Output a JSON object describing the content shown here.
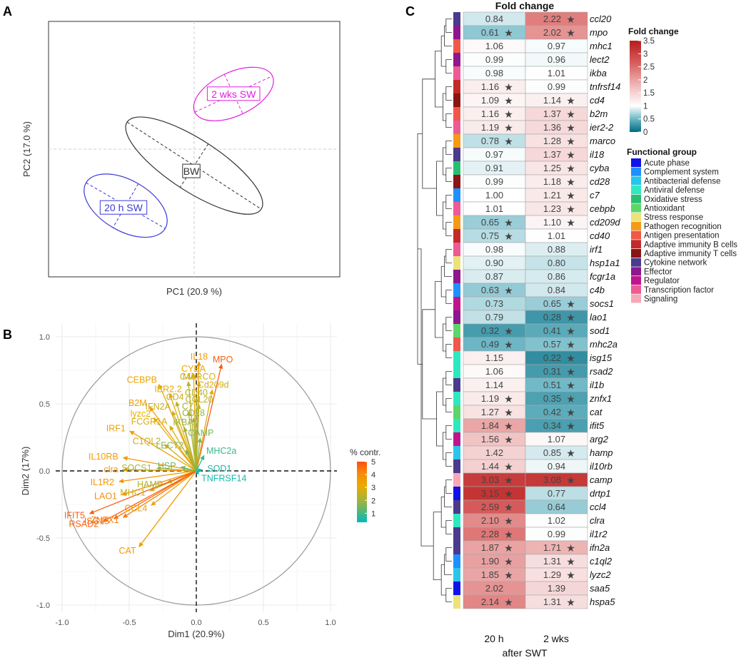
{
  "chart_data": [
    {
      "panel": "A",
      "type": "scatter",
      "title": "",
      "xlabel": "PC1 (20.9 %)",
      "ylabel": "PC2 (17.0 %)",
      "groups": [
        {
          "name": "2 wks SW",
          "color": "#e020e0",
          "center": [
            0.345,
            0.468
          ],
          "rx": 0.375,
          "ry": 0.185,
          "angle_deg": -25
        },
        {
          "name": "BW",
          "color": "#333333",
          "center": [
            0.0,
            -0.14
          ],
          "rx": 0.7,
          "ry": 0.22,
          "angle_deg": 33
        },
        {
          "name": "20 h SW",
          "color": "#3a3ad8",
          "center": [
            -0.6,
            -0.48
          ],
          "rx": 0.4,
          "ry": 0.215,
          "angle_deg": 30
        }
      ]
    },
    {
      "panel": "B",
      "type": "scatter",
      "subtype": "pca-variables-correlation-circle",
      "xlabel": "Dim1 (20.9%)",
      "ylabel": "Dim2 (17%)",
      "xlim": [
        -1.0,
        1.0
      ],
      "ylim": [
        -1.0,
        1.0
      ],
      "xticks": [
        "-1.0",
        "-0.5",
        "0.0",
        "0.5",
        "1.0"
      ],
      "yticks": [
        "-1.0",
        "-0.5",
        "0.0",
        "0.5",
        "1.0"
      ],
      "legend": {
        "title": "% contr.",
        "ticks": [
          "5",
          "4",
          "3",
          "2",
          "1"
        ],
        "min": 0.3,
        "max": 5.0,
        "position": "right"
      },
      "variables": [
        {
          "name": "MPO",
          "x": 0.19,
          "y": 0.8,
          "contrib": 4.8
        },
        {
          "name": "IL18",
          "x": 0.02,
          "y": 0.82,
          "contrib": 3.6
        },
        {
          "name": "CYBA",
          "x": -0.02,
          "y": 0.73,
          "contrib": 3.2
        },
        {
          "name": "CEBPB",
          "x": -0.28,
          "y": 0.65,
          "contrib": 3.3
        },
        {
          "name": "C4b",
          "x": -0.06,
          "y": 0.67,
          "contrib": 2.4
        },
        {
          "name": "MARCO",
          "x": 0.02,
          "y": 0.67,
          "contrib": 2.8
        },
        {
          "name": "Cd209d",
          "x": 0.12,
          "y": 0.61,
          "contrib": 2.8
        },
        {
          "name": "IER2.2",
          "x": -0.2,
          "y": 0.58,
          "contrib": 3.0
        },
        {
          "name": "CD40",
          "x": 0.0,
          "y": 0.55,
          "contrib": 2.2
        },
        {
          "name": "CCL20",
          "x": 0.02,
          "y": 0.5,
          "contrib": 2.4
        },
        {
          "name": "CD4",
          "x": -0.15,
          "y": 0.52,
          "contrib": 2.5
        },
        {
          "name": "B2M",
          "x": -0.35,
          "y": 0.48,
          "contrib": 3.5
        },
        {
          "name": "IFN2A",
          "x": -0.18,
          "y": 0.45,
          "contrib": 2.6
        },
        {
          "name": "C7",
          "x": -0.06,
          "y": 0.45,
          "contrib": 2.1
        },
        {
          "name": "lyzc2",
          "x": -0.32,
          "y": 0.4,
          "contrib": 3.1
        },
        {
          "name": "CD28",
          "x": -0.02,
          "y": 0.4,
          "contrib": 1.9
        },
        {
          "name": "FCGR1A",
          "x": -0.2,
          "y": 0.34,
          "contrib": 2.8
        },
        {
          "name": "IKBA",
          "x": -0.09,
          "y": 0.33,
          "contrib": 2.0
        },
        {
          "name": "CAMP",
          "x": 0.03,
          "y": 0.25,
          "contrib": 1.6
        },
        {
          "name": "IRF1",
          "x": -0.5,
          "y": 0.3,
          "contrib": 3.5
        },
        {
          "name": "C1QL2",
          "x": -0.24,
          "y": 0.2,
          "contrib": 2.6
        },
        {
          "name": "LECT2",
          "x": -0.08,
          "y": 0.16,
          "contrib": 1.6
        },
        {
          "name": "MHC2a",
          "x": 0.06,
          "y": 0.12,
          "contrib": 0.9
        },
        {
          "name": "IL10RB",
          "x": -0.55,
          "y": 0.1,
          "contrib": 3.6
        },
        {
          "name": "clra",
          "x": -0.55,
          "y": 0.01,
          "contrib": 3.7
        },
        {
          "name": "SOCS1",
          "x": -0.3,
          "y": 0.02,
          "contrib": 2.2
        },
        {
          "name": "HSP",
          "x": -0.12,
          "y": 0.03,
          "contrib": 1.4
        },
        {
          "name": "SOD1",
          "x": 0.05,
          "y": 0.01,
          "contrib": 0.6
        },
        {
          "name": "TNFRSF14",
          "x": 0.02,
          "y": -0.03,
          "contrib": 0.5
        },
        {
          "name": "IL1R2",
          "x": -0.58,
          "y": -0.08,
          "contrib": 3.8
        },
        {
          "name": "HAMP",
          "x": -0.22,
          "y": -0.09,
          "contrib": 2.2
        },
        {
          "name": "LAO1",
          "x": -0.56,
          "y": -0.18,
          "contrib": 4.0
        },
        {
          "name": "MHC1",
          "x": -0.35,
          "y": -0.15,
          "contrib": 2.6
        },
        {
          "name": "CCL4",
          "x": -0.34,
          "y": -0.26,
          "contrib": 3.4
        },
        {
          "name": "IFIT5",
          "x": -0.8,
          "y": -0.32,
          "contrib": 4.8
        },
        {
          "name": "ISG15",
          "x": -0.62,
          "y": -0.36,
          "contrib": 4.5
        },
        {
          "name": "ZNFX1",
          "x": -0.55,
          "y": -0.35,
          "contrib": 4.3
        },
        {
          "name": "RSAD2",
          "x": -0.7,
          "y": -0.38,
          "contrib": 4.7
        },
        {
          "name": "CAT",
          "x": -0.43,
          "y": -0.57,
          "contrib": 3.6
        }
      ]
    },
    {
      "panel": "C",
      "type": "heatmap",
      "title": "Fold change",
      "xlabel": "after SWT",
      "columns": [
        "20 h",
        "2 wks"
      ],
      "color_scale": {
        "title": "Fold change",
        "min": 0,
        "max": 3.5,
        "ticks": [
          "3.5",
          "3",
          "2.5",
          "2",
          "1.5",
          "1",
          "0.5",
          "0"
        ],
        "low": "#016b81",
        "mid": "#ffffff",
        "high": "#b71c1c"
      },
      "functional_groups": [
        {
          "name": "Acute phase",
          "color": "#1212e8"
        },
        {
          "name": "Complement system",
          "color": "#1e90ff"
        },
        {
          "name": "Antibacterial defense",
          "color": "#28c6e8"
        },
        {
          "name": "Antiviral defense",
          "color": "#2ee8c0"
        },
        {
          "name": "Oxidative stress",
          "color": "#28c070"
        },
        {
          "name": "Antioxidant",
          "color": "#5cd66a"
        },
        {
          "name": "Stress response",
          "color": "#ece27a"
        },
        {
          "name": "Pathogen recognition",
          "color": "#f59a16"
        },
        {
          "name": "Antigen presentation",
          "color": "#f0584a"
        },
        {
          "name": "Adaptive immunity B cells",
          "color": "#c42828"
        },
        {
          "name": "Adaptive immunity T cells",
          "color": "#8b1414"
        },
        {
          "name": "Cytokine network",
          "color": "#4c3a8c"
        },
        {
          "name": "Effector",
          "color": "#8e168e"
        },
        {
          "name": "Regulator",
          "color": "#c0148c"
        },
        {
          "name": "Transcription factor",
          "color": "#ee5a94"
        },
        {
          "name": "Signaling",
          "color": "#f7a8b8"
        }
      ],
      "rows": [
        {
          "gene": "ccl20",
          "group": "Cytokine network",
          "v20h": 0.84,
          "l20h": "0.84",
          "s20h": false,
          "v2w": 2.22,
          "l2w": "2.22",
          "s2w": true
        },
        {
          "gene": "mpo",
          "group": "Effector",
          "v20h": 0.61,
          "l20h": "0.61",
          "s20h": true,
          "v2w": 2.02,
          "l2w": "2.02",
          "s2w": true
        },
        {
          "gene": "mhc1",
          "group": "Antigen presentation",
          "v20h": 1.06,
          "l20h": "1.06",
          "s20h": false,
          "v2w": 0.97,
          "l2w": "0.97",
          "s2w": false
        },
        {
          "gene": "lect2",
          "group": "Effector",
          "v20h": 0.99,
          "l20h": "0.99",
          "s20h": false,
          "v2w": 0.96,
          "l2w": "0.96",
          "s2w": false
        },
        {
          "gene": "ikba",
          "group": "Transcription factor",
          "v20h": 0.98,
          "l20h": "0.98",
          "s20h": false,
          "v2w": 1.01,
          "l2w": "1.01",
          "s2w": false
        },
        {
          "gene": "tnfrsf14",
          "group": "Adaptive immunity B cells",
          "v20h": 1.16,
          "l20h": "1.16",
          "s20h": true,
          "v2w": 0.99,
          "l2w": "0.99",
          "s2w": false
        },
        {
          "gene": "cd4",
          "group": "Adaptive immunity T cells",
          "v20h": 1.09,
          "l20h": "1.09",
          "s20h": true,
          "v2w": 1.14,
          "l2w": "1.14",
          "s2w": true
        },
        {
          "gene": "b2m",
          "group": "Antigen presentation",
          "v20h": 1.16,
          "l20h": "1.16",
          "s20h": true,
          "v2w": 1.37,
          "l2w": "1.37",
          "s2w": true
        },
        {
          "gene": "ier2-2",
          "group": "Transcription factor",
          "v20h": 1.19,
          "l20h": "1.19",
          "s20h": true,
          "v2w": 1.36,
          "l2w": "1.36",
          "s2w": true
        },
        {
          "gene": "marco",
          "group": "Pathogen recognition",
          "v20h": 0.78,
          "l20h": "0.78",
          "s20h": true,
          "v2w": 1.28,
          "l2w": "1.28",
          "s2w": true
        },
        {
          "gene": "il18",
          "group": "Cytokine network",
          "v20h": 0.97,
          "l20h": "0.97",
          "s20h": false,
          "v2w": 1.37,
          "l2w": "1.37",
          "s2w": true
        },
        {
          "gene": "cyba",
          "group": "Oxidative stress",
          "v20h": 0.91,
          "l20h": "0.91",
          "s20h": false,
          "v2w": 1.25,
          "l2w": "1.25",
          "s2w": true
        },
        {
          "gene": "cd28",
          "group": "Adaptive immunity T cells",
          "v20h": 0.99,
          "l20h": "0.99",
          "s20h": false,
          "v2w": 1.18,
          "l2w": "1.18",
          "s2w": true
        },
        {
          "gene": "c7",
          "group": "Complement system",
          "v20h": 1.0,
          "l20h": "1.00",
          "s20h": false,
          "v2w": 1.21,
          "l2w": "1.21",
          "s2w": true
        },
        {
          "gene": "cebpb",
          "group": "Transcription factor",
          "v20h": 1.01,
          "l20h": "1.01",
          "s20h": false,
          "v2w": 1.23,
          "l2w": "1.23",
          "s2w": true
        },
        {
          "gene": "cd209d",
          "group": "Pathogen recognition",
          "v20h": 0.65,
          "l20h": "0.65",
          "s20h": true,
          "v2w": 1.1,
          "l2w": "1.10",
          "s2w": true
        },
        {
          "gene": "cd40",
          "group": "Adaptive immunity B cells",
          "v20h": 0.75,
          "l20h": "0.75",
          "s20h": true,
          "v2w": 1.01,
          "l2w": "1.01",
          "s2w": false
        },
        {
          "gene": "irf1",
          "group": "Transcription factor",
          "v20h": 0.98,
          "l20h": "0.98",
          "s20h": false,
          "v2w": 0.88,
          "l2w": "0.88",
          "s2w": false
        },
        {
          "gene": "hsp1a1",
          "group": "Stress response",
          "v20h": 0.9,
          "l20h": "0.90",
          "s20h": false,
          "v2w": 0.8,
          "l2w": "0.80",
          "s2w": false
        },
        {
          "gene": "fcgr1a",
          "group": "Effector",
          "v20h": 0.87,
          "l20h": "0.87",
          "s20h": false,
          "v2w": 0.86,
          "l2w": "0.86",
          "s2w": false
        },
        {
          "gene": "c4b",
          "group": "Complement system",
          "v20h": 0.63,
          "l20h": "0.63",
          "s20h": true,
          "v2w": 0.84,
          "l2w": "0.84",
          "s2w": false
        },
        {
          "gene": "socs1",
          "group": "Regulator",
          "v20h": 0.73,
          "l20h": "0.73",
          "s20h": false,
          "v2w": 0.65,
          "l2w": "0.65",
          "s2w": true
        },
        {
          "gene": "lao1",
          "group": "Effector",
          "v20h": 0.79,
          "l20h": "0.79",
          "s20h": false,
          "v2w": 0.28,
          "l2w": "0.28",
          "s2w": true
        },
        {
          "gene": "sod1",
          "group": "Antioxidant",
          "v20h": 0.32,
          "l20h": "0.32",
          "s20h": true,
          "v2w": 0.41,
          "l2w": "0.41",
          "s2w": true
        },
        {
          "gene": "mhc2a",
          "group": "Antigen presentation",
          "v20h": 0.49,
          "l20h": "0.49",
          "s20h": true,
          "v2w": 0.57,
          "l2w": "0.57",
          "s2w": true
        },
        {
          "gene": "isg15",
          "group": "Antiviral defense",
          "v20h": 1.15,
          "l20h": "1.15",
          "s20h": false,
          "v2w": 0.22,
          "l2w": "0.22",
          "s2w": true
        },
        {
          "gene": "rsad2",
          "group": "Antiviral defense",
          "v20h": 1.06,
          "l20h": "1.06",
          "s20h": false,
          "v2w": 0.31,
          "l2w": "0.31",
          "s2w": true
        },
        {
          "gene": "il1b",
          "group": "Cytokine network",
          "v20h": 1.14,
          "l20h": "1.14",
          "s20h": false,
          "v2w": 0.51,
          "l2w": "0.51",
          "s2w": true
        },
        {
          "gene": "znfx1",
          "group": "Antiviral defense",
          "v20h": 1.19,
          "l20h": "1.19",
          "s20h": true,
          "v2w": 0.35,
          "l2w": "0.35",
          "s2w": true
        },
        {
          "gene": "cat",
          "group": "Antioxidant",
          "v20h": 1.27,
          "l20h": "1.27",
          "s20h": true,
          "v2w": 0.42,
          "l2w": "0.42",
          "s2w": true
        },
        {
          "gene": "ifit5",
          "group": "Antiviral defense",
          "v20h": 1.84,
          "l20h": "1.84",
          "s20h": true,
          "v2w": 0.34,
          "l2w": "0.34",
          "s2w": true
        },
        {
          "gene": "arg2",
          "group": "Regulator",
          "v20h": 1.56,
          "l20h": "1.56",
          "s20h": true,
          "v2w": 1.07,
          "l2w": "1.07",
          "s2w": false
        },
        {
          "gene": "hamp",
          "group": "Antibacterial defense",
          "v20h": 1.42,
          "l20h": "1.42",
          "s20h": false,
          "v2w": 0.85,
          "l2w": "0.85",
          "s2w": true
        },
        {
          "gene": "il10rb",
          "group": "Cytokine network",
          "v20h": 1.44,
          "l20h": "1.44",
          "s20h": true,
          "v2w": 0.94,
          "l2w": "0.94",
          "s2w": false
        },
        {
          "gene": "camp",
          "group": "Signaling",
          "v20h": 3.03,
          "l20h": "3.03",
          "s20h": true,
          "v2w": 3.08,
          "l2w": "3.08",
          "s2w": true
        },
        {
          "gene": "drtp1",
          "group": "Acute phase",
          "v20h": 3.15,
          "l20h": "3.15",
          "s20h": true,
          "v2w": 0.77,
          "l2w": "0.77",
          "s2w": false
        },
        {
          "gene": "ccl4",
          "group": "Cytokine network",
          "v20h": 2.59,
          "l20h": "2.59",
          "s20h": true,
          "v2w": 0.64,
          "l2w": "0.64",
          "s2w": false
        },
        {
          "gene": "clra",
          "group": "Antiviral defense",
          "v20h": 2.1,
          "l20h": "2.10",
          "s20h": true,
          "v2w": 1.02,
          "l2w": "1.02",
          "s2w": false
        },
        {
          "gene": "il1r2",
          "group": "Cytokine network",
          "v20h": 2.28,
          "l20h": "2.28",
          "s20h": true,
          "v2w": 0.99,
          "l2w": "0.99",
          "s2w": false
        },
        {
          "gene": "ifn2a",
          "group": "Cytokine network",
          "v20h": 1.87,
          "l20h": "1.87",
          "s20h": true,
          "v2w": 1.71,
          "l2w": "1.71",
          "s2w": true
        },
        {
          "gene": "c1ql2",
          "group": "Complement system",
          "v20h": 1.9,
          "l20h": "1.90",
          "s20h": true,
          "v2w": 1.31,
          "l2w": "1.31",
          "s2w": true
        },
        {
          "gene": "lyzc2",
          "group": "Antibacterial defense",
          "v20h": 1.85,
          "l20h": "1.85",
          "s20h": true,
          "v2w": 1.29,
          "l2w": "1.29",
          "s2w": true
        },
        {
          "gene": "saa5",
          "group": "Acute phase",
          "v20h": 2.02,
          "l20h": "2.02",
          "s20h": false,
          "v2w": 1.39,
          "l2w": "1.39",
          "s2w": false
        },
        {
          "gene": "hspa5",
          "group": "Stress response",
          "v20h": 2.14,
          "l20h": "2.14",
          "s20h": true,
          "v2w": 1.31,
          "l2w": "1.31",
          "s2w": true
        }
      ],
      "star_symbol": "★",
      "legend_groups_title": "Functional group"
    }
  ],
  "panel_labels": {
    "a": "A",
    "b": "B",
    "c": "C"
  }
}
